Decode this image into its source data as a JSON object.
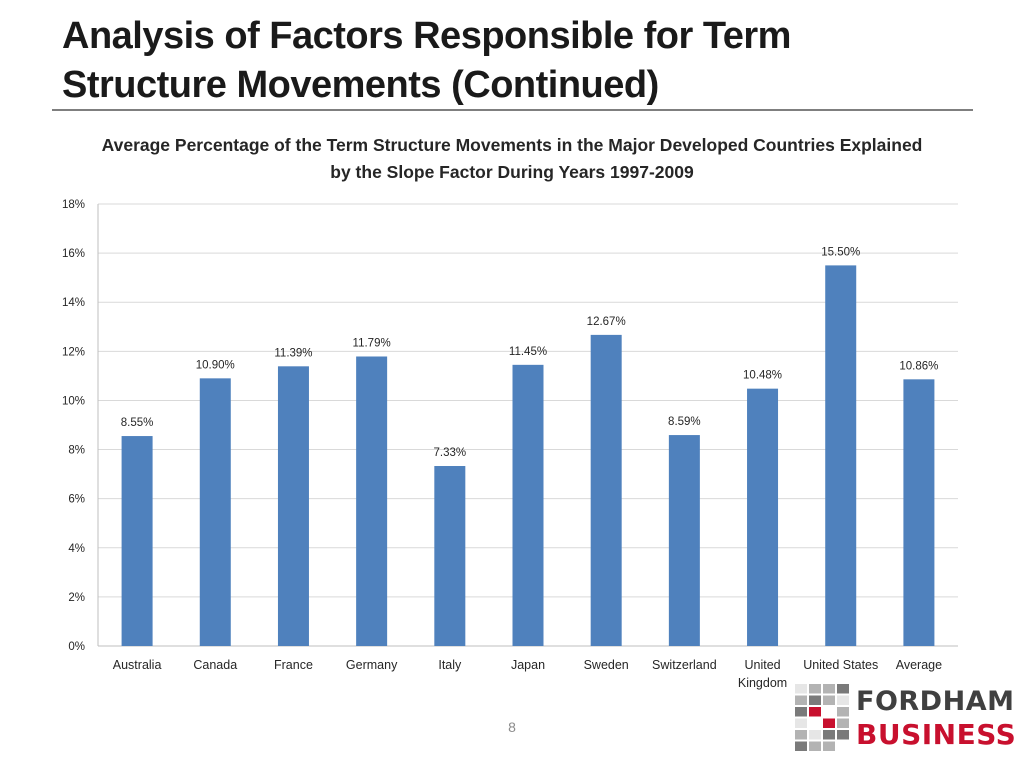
{
  "slide": {
    "title": "Analysis of Factors Responsible for Term Structure Movements (Continued)",
    "page_number": "8"
  },
  "logo": {
    "line1": "FORDHAM",
    "line2": "BUSINESS",
    "colors": {
      "red": "#c8102e",
      "gray": "#404040"
    }
  },
  "colors": {
    "bar": "#4f81bd",
    "grid": "#d9d9d9",
    "axis": "#bfbfbf",
    "text": "#262626"
  },
  "chart_data": {
    "type": "bar",
    "title": "Average Percentage of the Term Structure Movements in the Major Developed Countries Explained by the Slope Factor During Years 1997-2009",
    "xlabel": "",
    "ylabel": "",
    "categories": [
      "Australia",
      "Canada",
      "France",
      "Germany",
      "Italy",
      "Japan",
      "Sweden",
      "Switzerland",
      "United Kingdom",
      "United States",
      "Average"
    ],
    "values": [
      8.55,
      10.9,
      11.39,
      11.79,
      7.33,
      11.45,
      12.67,
      8.59,
      10.48,
      15.5,
      10.86
    ],
    "data_labels": [
      "8.55%",
      "10.90%",
      "11.39%",
      "11.79%",
      "7.33%",
      "11.45%",
      "12.67%",
      "8.59%",
      "10.48%",
      "15.50%",
      "10.86%"
    ],
    "ylim": [
      0,
      18
    ],
    "y_ticks": [
      0,
      2,
      4,
      6,
      8,
      10,
      12,
      14,
      16,
      18
    ],
    "y_tick_labels": [
      "0%",
      "2%",
      "4%",
      "6%",
      "8%",
      "10%",
      "12%",
      "14%",
      "16%",
      "18%"
    ],
    "grid": true,
    "legend": "none"
  }
}
